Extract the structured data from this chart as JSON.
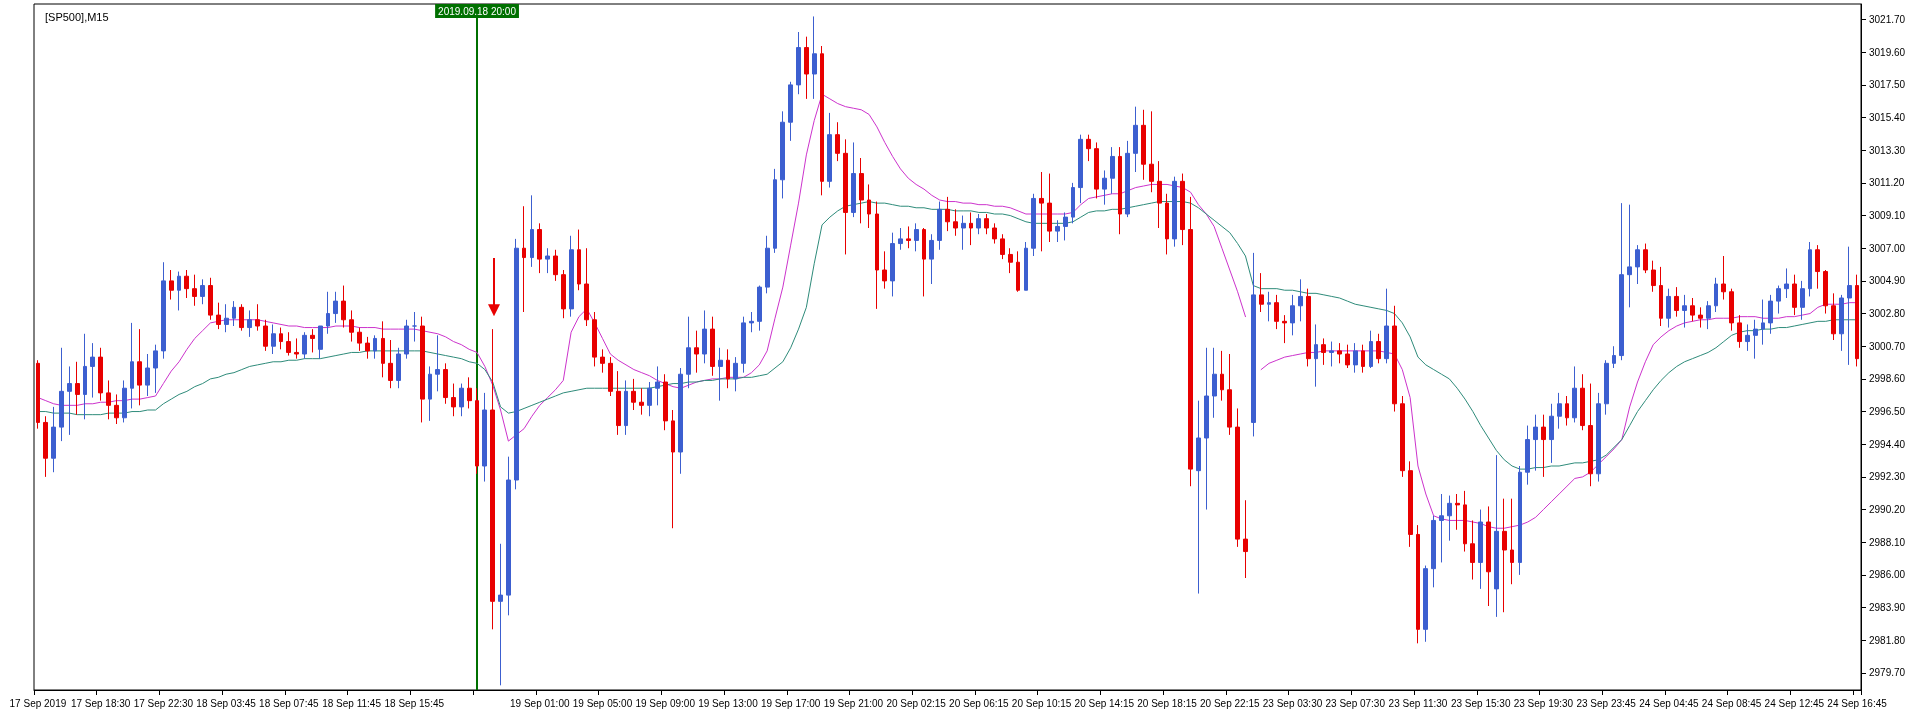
{
  "chart_data": {
    "type": "candlestick",
    "title": "[SP500],M15",
    "categories": [
      "17 Sep 2019",
      null,
      null,
      null,
      null,
      null,
      null,
      null,
      "17 Sep 18:30",
      null,
      null,
      null,
      null,
      null,
      null,
      null,
      "17 Sep 22:30",
      null,
      null,
      null,
      null,
      null,
      null,
      null,
      "18 Sep 03:45",
      null,
      null,
      null,
      null,
      null,
      null,
      null,
      "18 Sep 07:45",
      null,
      null,
      null,
      null,
      null,
      null,
      null,
      "18 Sep 11:45",
      null,
      null,
      null,
      null,
      null,
      null,
      null,
      "18 Sep 15:45",
      null,
      null,
      null,
      null,
      null,
      null,
      null,
      "2019.09.18 20:00",
      null,
      null,
      null,
      null,
      null,
      null,
      null,
      "19 Sep 01:00",
      null,
      null,
      null,
      null,
      null,
      null,
      null,
      "19 Sep 05:00",
      null,
      null,
      null,
      null,
      null,
      null,
      null,
      "19 Sep 09:00",
      null,
      null,
      null,
      null,
      null,
      null,
      null,
      "19 Sep 13:00",
      null,
      null,
      null,
      null,
      null,
      null,
      null,
      "19 Sep 17:00",
      null,
      null,
      null,
      null,
      null,
      null,
      null,
      "19 Sep 21:00",
      null,
      null,
      null,
      null,
      null,
      null,
      null,
      "20 Sep 02:15",
      null,
      null,
      null,
      null,
      null,
      null,
      null,
      "20 Sep 06:15",
      null,
      null,
      null,
      null,
      null,
      null,
      null,
      "20 Sep 10:15",
      null,
      null,
      null,
      null,
      null,
      null,
      null,
      "20 Sep 14:15",
      null,
      null,
      null,
      null,
      null,
      null,
      null,
      "20 Sep 18:15",
      null,
      null,
      null,
      null,
      null,
      null,
      null,
      "20 Sep 22:15",
      null,
      null,
      null,
      null,
      null,
      null,
      null,
      "23 Sep 03:30",
      null,
      null,
      null,
      null,
      null,
      null,
      null,
      "23 Sep 07:30",
      null,
      null,
      null,
      null,
      null,
      null,
      null,
      "23 Sep 11:30",
      null,
      null,
      null,
      null,
      null,
      null,
      null,
      "23 Sep 15:30",
      null,
      null,
      null,
      null,
      null,
      null,
      null,
      "23 Sep 19:30",
      null,
      null,
      null,
      null,
      null,
      null,
      null,
      "23 Sep 23:45",
      null,
      null,
      null,
      null,
      null,
      null,
      null,
      "24 Sep 04:45",
      null,
      null,
      null,
      null,
      null,
      null,
      null,
      "24 Sep 08:45",
      null,
      null,
      null,
      null,
      null,
      null,
      null,
      "24 Sep 12:45",
      null,
      null,
      null,
      null,
      null,
      null,
      null,
      "24 Sep 16:45"
    ],
    "ohlc": [
      [
        2999.6,
        2999.8,
        2995.4,
        2995.8
      ],
      [
        2995.8,
        2996.2,
        2992.3,
        2993.5
      ],
      [
        2993.5,
        2996.8,
        2992.6,
        2995.5
      ],
      [
        2995.5,
        3000.6,
        2994.6,
        2997.8
      ],
      [
        2997.8,
        2999.4,
        2995.0,
        2998.3
      ],
      [
        2998.3,
        2999.7,
        2996.3,
        2997.6
      ],
      [
        2997.6,
        3001.5,
        2996.0,
        2999.4
      ],
      [
        2999.4,
        3000.9,
        2997.4,
        3000.0
      ],
      [
        3000.0,
        3000.6,
        2997.2,
        2997.7
      ],
      [
        2997.7,
        2998.5,
        2996.0,
        2996.9
      ],
      [
        2996.9,
        2997.6,
        2995.7,
        2996.1
      ],
      [
        2996.1,
        2998.5,
        2995.8,
        2998.0
      ],
      [
        2998.0,
        3002.2,
        2996.7,
        2999.7
      ],
      [
        2999.7,
        3001.8,
        2996.9,
        2998.2
      ],
      [
        2998.2,
        3000.2,
        2997.5,
        2999.3
      ],
      [
        2999.3,
        3000.8,
        2997.7,
        3000.4
      ],
      [
        3000.4,
        3006.1,
        2999.9,
        3004.9
      ],
      [
        3004.9,
        3005.6,
        3003.7,
        3004.3
      ],
      [
        3004.3,
        3005.5,
        3003.0,
        3005.2
      ],
      [
        3005.2,
        3005.6,
        3003.8,
        3004.4
      ],
      [
        3004.4,
        3005.3,
        3003.3,
        3003.9
      ],
      [
        3003.9,
        3005.0,
        3003.4,
        3004.6
      ],
      [
        3004.6,
        3005.1,
        3002.4,
        3002.7
      ],
      [
        3002.7,
        3003.5,
        3001.8,
        3002.1
      ],
      [
        3002.1,
        3003.4,
        3001.6,
        3002.5
      ],
      [
        3002.5,
        3003.6,
        3002.0,
        3003.2
      ],
      [
        3003.2,
        3003.4,
        3001.7,
        3001.9
      ],
      [
        3001.9,
        3003.0,
        3001.3,
        3002.4
      ],
      [
        3002.4,
        3003.4,
        3001.7,
        3002.0
      ],
      [
        3002.0,
        3002.4,
        3000.4,
        3000.7
      ],
      [
        3000.7,
        3002.1,
        3000.2,
        3001.5
      ],
      [
        3001.5,
        3001.9,
        3000.5,
        3001.0
      ],
      [
        3001.0,
        3001.6,
        3000.1,
        3000.3
      ],
      [
        3000.3,
        3001.2,
        2999.9,
        3000.2
      ],
      [
        3000.2,
        3001.6,
        2999.9,
        3001.4
      ],
      [
        3001.4,
        3001.8,
        3000.3,
        3001.2
      ],
      [
        3000.5,
        3002.0,
        2999.9,
        3002.0
      ],
      [
        3002.0,
        3004.2,
        3001.5,
        3002.8
      ],
      [
        3002.8,
        3004.2,
        3002.2,
        3003.6
      ],
      [
        3003.6,
        3004.6,
        3001.9,
        3002.4
      ],
      [
        3002.4,
        3003.0,
        3001.0,
        3001.6
      ],
      [
        3001.6,
        3001.9,
        3000.4,
        3000.9
      ],
      [
        3000.9,
        3001.3,
        2999.9,
        3000.4
      ],
      [
        3000.4,
        3001.4,
        2999.9,
        3001.2
      ],
      [
        3001.2,
        3002.3,
        2998.7,
        2999.6
      ],
      [
        2999.6,
        3001.1,
        2998.0,
        2998.5
      ],
      [
        2998.5,
        3000.6,
        2998.0,
        3000.2
      ],
      [
        3000.2,
        3002.4,
        2999.9,
        3002.0
      ],
      [
        3002.0,
        3002.9,
        3001.0,
        3002.0
      ],
      [
        3002.0,
        3002.6,
        2995.8,
        2997.3
      ],
      [
        2997.3,
        2999.4,
        2995.9,
        2998.9
      ],
      [
        2998.9,
        3001.4,
        2997.8,
        2999.2
      ],
      [
        2999.2,
        2999.6,
        2997.0,
        2997.4
      ],
      [
        2997.4,
        2998.3,
        2996.2,
        2996.8
      ],
      [
        2996.8,
        2998.3,
        2996.2,
        2998.0
      ],
      [
        2998.0,
        2998.7,
        2996.7,
        2997.2
      ],
      [
        2997.2,
        2998.0,
        2992.5,
        2993.0
      ],
      [
        2993.0,
        2997.7,
        2992.0,
        2996.6
      ],
      [
        2996.6,
        3001.8,
        2982.5,
        2984.3
      ],
      [
        2984.3,
        2988.0,
        2978.9,
        2984.7
      ],
      [
        2984.7,
        2993.6,
        2983.4,
        2992.1
      ],
      [
        2992.1,
        3007.6,
        2991.5,
        3007.0
      ],
      [
        3007.0,
        3009.7,
        3002.9,
        3006.4
      ],
      [
        3006.4,
        3010.4,
        3005.8,
        3008.2
      ],
      [
        3008.2,
        3008.6,
        3005.4,
        3006.3
      ],
      [
        3006.3,
        3007.0,
        3005.4,
        3006.5
      ],
      [
        3006.5,
        3006.9,
        3004.9,
        3005.3
      ],
      [
        3005.3,
        3005.6,
        3002.5,
        3003.1
      ],
      [
        3003.1,
        3007.8,
        3002.6,
        3006.9
      ],
      [
        3006.9,
        3008.2,
        3004.3,
        3004.7
      ],
      [
        3004.7,
        3007.0,
        3002.0,
        3002.4
      ],
      [
        3002.4,
        3002.9,
        2999.4,
        3000.0
      ],
      [
        3000.0,
        3000.5,
        2999.0,
        2999.6
      ],
      [
        2999.6,
        3000.0,
        2997.5,
        2997.8
      ],
      [
        2997.8,
        2999.1,
        2995.0,
        2995.6
      ],
      [
        2995.6,
        2998.5,
        2995.0,
        2997.8
      ],
      [
        2997.8,
        2998.6,
        2996.6,
        2997.1
      ],
      [
        2997.1,
        2998.0,
        2996.3,
        2996.9
      ],
      [
        2996.9,
        2998.4,
        2996.2,
        2998.0
      ],
      [
        2998.0,
        2999.4,
        2996.9,
        2998.4
      ],
      [
        2998.4,
        2998.9,
        2995.3,
        2995.9
      ],
      [
        2995.9,
        2996.6,
        2989.0,
        2993.9
      ],
      [
        2993.9,
        2999.3,
        2992.5,
        2998.9
      ],
      [
        2998.9,
        3002.6,
        2998.0,
        3000.6
      ],
      [
        3000.6,
        3001.7,
        2999.0,
        3000.2
      ],
      [
        3000.2,
        3003.0,
        2999.6,
        3001.8
      ],
      [
        3001.8,
        3002.6,
        2998.8,
        2999.4
      ],
      [
        2999.4,
        3000.6,
        2997.2,
        2999.8
      ],
      [
        2999.8,
        3000.5,
        2998.0,
        2998.6
      ],
      [
        2998.6,
        3000.0,
        2997.8,
        2999.6
      ],
      [
        2999.6,
        3002.6,
        2999.0,
        3002.2
      ],
      [
        3002.2,
        3002.9,
        3001.6,
        3002.3
      ],
      [
        3002.3,
        3004.6,
        3001.7,
        3004.5
      ],
      [
        3004.5,
        3007.8,
        3004.1,
        3007.0
      ],
      [
        3007.0,
        3012.1,
        3006.7,
        3011.4
      ],
      [
        3011.4,
        3015.8,
        3010.2,
        3015.1
      ],
      [
        3015.1,
        3017.7,
        3013.9,
        3017.5
      ],
      [
        3017.5,
        3020.9,
        3016.9,
        3019.9
      ],
      [
        3019.9,
        3020.6,
        3016.6,
        3018.2
      ],
      [
        3018.2,
        3021.9,
        3016.6,
        3019.5
      ],
      [
        3019.5,
        3020.0,
        3010.4,
        3011.3
      ],
      [
        3011.3,
        3015.7,
        3010.9,
        3014.3
      ],
      [
        3014.3,
        3015.1,
        3012.6,
        3013.1
      ],
      [
        3013.1,
        3014.0,
        3006.6,
        3009.3
      ],
      [
        3009.3,
        3013.8,
        3009.0,
        3011.8
      ],
      [
        3011.8,
        3012.8,
        3008.6,
        3010.1
      ],
      [
        3010.1,
        3011.1,
        3008.3,
        3009.2
      ],
      [
        3009.2,
        3010.0,
        3003.1,
        3005.6
      ],
      [
        3005.6,
        3006.8,
        3004.4,
        3004.9
      ],
      [
        3004.9,
        3008.0,
        3003.9,
        3007.3
      ],
      [
        3007.3,
        3008.3,
        3006.9,
        3007.6
      ],
      [
        3007.6,
        3008.4,
        3007.0,
        3007.5
      ],
      [
        3007.5,
        3008.6,
        3006.8,
        3008.2
      ],
      [
        3008.2,
        3008.3,
        3003.9,
        3006.3
      ],
      [
        3006.3,
        3007.9,
        3004.7,
        3007.5
      ],
      [
        3007.5,
        3010.0,
        3006.9,
        3009.5
      ],
      [
        3009.5,
        3010.3,
        3008.1,
        3008.7
      ],
      [
        3008.7,
        3009.5,
        3007.8,
        3008.3
      ],
      [
        3008.3,
        3009.1,
        3006.9,
        3008.6
      ],
      [
        3008.6,
        3009.3,
        3007.2,
        3008.3
      ],
      [
        3008.3,
        3009.2,
        3007.9,
        3008.9
      ],
      [
        3008.9,
        3009.2,
        3007.9,
        3008.3
      ],
      [
        3008.3,
        3008.6,
        3007.3,
        3007.6
      ],
      [
        3007.6,
        3007.9,
        3006.3,
        3006.6
      ],
      [
        3006.6,
        3007.0,
        3005.4,
        3006.1
      ],
      [
        3006.1,
        3006.8,
        3004.2,
        3004.3
      ],
      [
        3004.3,
        3007.4,
        3004.3,
        3007.0
      ],
      [
        3007.0,
        3010.5,
        3006.5,
        3010.2
      ],
      [
        3010.2,
        3011.9,
        3006.8,
        3009.9
      ],
      [
        3009.9,
        3011.8,
        3007.4,
        3008.1
      ],
      [
        3008.1,
        3008.8,
        3007.4,
        3008.4
      ],
      [
        3008.4,
        3009.3,
        3007.5,
        3009.0
      ],
      [
        3009.0,
        3011.2,
        3008.6,
        3010.9
      ],
      [
        3010.9,
        3014.3,
        3009.9,
        3014.0
      ],
      [
        3014.0,
        3014.3,
        3012.6,
        3013.4
      ],
      [
        3013.4,
        3013.8,
        3010.2,
        3010.8
      ],
      [
        3010.8,
        3012.0,
        3009.8,
        3011.5
      ],
      [
        3011.5,
        3013.5,
        3010.5,
        3012.9
      ],
      [
        3012.9,
        3013.5,
        3007.9,
        3009.2
      ],
      [
        3009.2,
        3013.9,
        3009.0,
        3013.1
      ],
      [
        3013.1,
        3016.1,
        3011.9,
        3014.9
      ],
      [
        3014.9,
        3015.9,
        3011.4,
        3012.4
      ],
      [
        3012.4,
        3015.8,
        3010.6,
        3011.3
      ],
      [
        3011.3,
        3012.6,
        3008.3,
        3009.9
      ],
      [
        3009.9,
        3010.5,
        3006.6,
        3007.6
      ],
      [
        3007.6,
        3011.6,
        3007.1,
        3011.3
      ],
      [
        3011.3,
        3011.8,
        3007.2,
        3008.2
      ],
      [
        3008.2,
        3010.3,
        2991.7,
        2992.8
      ],
      [
        2992.7,
        2997.2,
        2984.8,
        2994.8
      ],
      [
        2994.8,
        3000.6,
        2990.2,
        2997.5
      ],
      [
        2997.5,
        3000.6,
        2996.1,
        2998.9
      ],
      [
        2998.9,
        3000.4,
        2997.2,
        2997.9
      ],
      [
        2997.9,
        3000.2,
        2995.0,
        2995.5
      ],
      [
        2995.5,
        2996.7,
        2987.8,
        2988.3
      ],
      [
        2988.3,
        2990.8,
        2985.8,
        2987.5
      ],
      [
        2995.8,
        3006.7,
        2994.9,
        3004.0
      ],
      [
        3004.0,
        3005.4,
        3002.9,
        3003.4
      ],
      [
        3003.4,
        3004.2,
        3002.3,
        3003.5
      ],
      [
        3003.5,
        3004.0,
        3001.8,
        3002.3
      ],
      [
        3002.3,
        3002.7,
        3000.9,
        3002.2
      ],
      [
        3002.2,
        3004.0,
        3001.4,
        3003.3
      ],
      [
        3003.3,
        3005.0,
        3002.3,
        3003.9
      ],
      [
        3003.9,
        3004.4,
        2999.4,
        2999.9
      ],
      [
        2999.9,
        3002.1,
        2998.1,
        3000.8
      ],
      [
        3000.8,
        3001.2,
        2999.5,
        3000.3
      ],
      [
        3000.3,
        3001.0,
        2999.4,
        3000.4
      ],
      [
        3000.4,
        3000.9,
        2999.6,
        3000.2
      ],
      [
        3000.2,
        3000.8,
        2999.3,
        2999.5
      ],
      [
        2999.5,
        3000.9,
        2999.0,
        3000.4
      ],
      [
        3000.4,
        3000.8,
        2999.0,
        2999.4
      ],
      [
        2999.4,
        3001.7,
        2999.3,
        3001.0
      ],
      [
        3001.0,
        3001.5,
        2999.6,
        2999.9
      ],
      [
        2999.9,
        3004.4,
        2999.6,
        3002.0
      ],
      [
        3002.0,
        3003.3,
        2996.5,
        2997.0
      ],
      [
        2997.0,
        2997.5,
        2992.3,
        2992.7
      ],
      [
        2992.7,
        2993.3,
        2987.8,
        2988.6
      ],
      [
        2988.6,
        2989.2,
        2981.6,
        2982.5
      ],
      [
        2982.5,
        2986.6,
        2981.7,
        2986.4
      ],
      [
        2986.4,
        2989.8,
        2985.2,
        2989.5
      ],
      [
        2989.5,
        2991.2,
        2986.8,
        2989.8
      ],
      [
        2989.8,
        2991.1,
        2988.2,
        2990.6
      ],
      [
        2990.6,
        2991.2,
        2988.9,
        2990.5
      ],
      [
        2990.5,
        2991.4,
        2987.5,
        2988.0
      ],
      [
        2988.0,
        2989.5,
        2985.7,
        2986.8
      ],
      [
        2986.8,
        2990.2,
        2985.1,
        2989.4
      ],
      [
        2989.4,
        2990.4,
        2984.0,
        2986.2
      ],
      [
        2985.1,
        2993.7,
        2983.3,
        2988.8
      ],
      [
        2988.8,
        2990.9,
        2983.6,
        2987.6
      ],
      [
        2987.6,
        2990.9,
        2985.4,
        2986.8
      ],
      [
        2986.8,
        2993.0,
        2986.0,
        2992.6
      ],
      [
        2992.6,
        2995.6,
        2991.8,
        2994.7
      ],
      [
        2994.7,
        2996.3,
        2992.7,
        2995.5
      ],
      [
        2995.5,
        2996.3,
        2992.3,
        2994.7
      ],
      [
        2994.7,
        2997.0,
        2993.2,
        2996.2
      ],
      [
        2996.2,
        2997.7,
        2995.4,
        2997.0
      ],
      [
        2997.0,
        2997.5,
        2995.6,
        2996.1
      ],
      [
        2996.1,
        2999.4,
        2995.8,
        2998.0
      ],
      [
        2998.0,
        2998.9,
        2995.3,
        2995.6
      ],
      [
        2995.6,
        2998.3,
        2991.7,
        2992.5
      ],
      [
        2992.5,
        2997.7,
        2992.0,
        2997.0
      ],
      [
        2997.0,
        2999.8,
        2996.3,
        2999.6
      ],
      [
        2999.6,
        3000.7,
        2999.3,
        3000.1
      ],
      [
        3000.1,
        3009.9,
        2999.8,
        3005.3
      ],
      [
        3005.3,
        3009.8,
        3003.2,
        3005.8
      ],
      [
        3005.8,
        3007.2,
        3004.7,
        3006.9
      ],
      [
        3006.9,
        3007.3,
        3005.4,
        3005.6
      ],
      [
        3005.6,
        3006.2,
        3004.2,
        3004.6
      ],
      [
        3004.6,
        3005.8,
        3002.0,
        3002.5
      ],
      [
        3002.5,
        3004.4,
        3001.9,
        3003.9
      ],
      [
        3003.9,
        3004.5,
        3002.6,
        3003.0
      ],
      [
        3003.0,
        3004.0,
        3001.9,
        3003.3
      ],
      [
        3003.3,
        3003.8,
        3002.3,
        3002.7
      ],
      [
        3002.7,
        3003.2,
        3001.9,
        3002.5
      ],
      [
        3002.5,
        3003.6,
        3001.8,
        3003.3
      ],
      [
        3003.3,
        3005.1,
        3002.9,
        3004.7
      ],
      [
        3004.7,
        3006.5,
        3003.7,
        3004.2
      ],
      [
        3004.2,
        3004.4,
        3001.7,
        3002.2
      ],
      [
        3002.2,
        3002.7,
        3000.6,
        3001.0
      ],
      [
        3001.0,
        3002.1,
        3000.4,
        3001.4
      ],
      [
        3001.4,
        3002.4,
        2999.9,
        3001.8
      ],
      [
        3001.8,
        3003.7,
        3000.8,
        3002.2
      ],
      [
        3002.2,
        3004.0,
        3001.5,
        3003.6
      ],
      [
        3003.6,
        3004.6,
        3002.8,
        3004.4
      ],
      [
        3004.4,
        3005.7,
        3003.8,
        3004.7
      ],
      [
        3004.7,
        3005.3,
        3002.7,
        3003.2
      ],
      [
        3003.2,
        3004.9,
        3002.4,
        3004.4
      ],
      [
        3004.4,
        3007.4,
        3003.9,
        3006.9
      ],
      [
        3006.9,
        3007.2,
        3004.4,
        3005.5
      ],
      [
        3005.5,
        3005.6,
        3002.8,
        3003.3
      ],
      [
        3003.3,
        3004.1,
        3001.1,
        3001.5
      ],
      [
        3001.5,
        3004.0,
        3000.4,
        3003.8
      ],
      [
        3003.8,
        3007.1,
        2999.5,
        3004.6
      ],
      [
        3004.6,
        3005.3,
        2999.4,
        2999.9
      ]
    ],
    "series": [
      {
        "type": "line",
        "color": "#cc33cc",
        "values": [
          2997.4,
          2997.2,
          2997.0,
          2996.9,
          2996.9,
          2996.9,
          2997.0,
          2997.0,
          2997.1,
          2997.1,
          2997.2,
          2997.2,
          2997.3,
          2997.3,
          2997.4,
          2997.5,
          2998.3,
          2999.1,
          2999.7,
          3000.5,
          3001.2,
          3001.7,
          3002.2,
          3002.3,
          3002.4,
          3002.4,
          3002.4,
          3002.4,
          3002.4,
          3002.3,
          3002.2,
          3002.1,
          3002.0,
          3002.0,
          3001.9,
          3001.9,
          3001.9,
          3001.9,
          3002.0,
          3002.0,
          3002.0,
          3001.9,
          3001.9,
          3001.9,
          3001.8,
          3001.8,
          3001.8,
          3001.8,
          3001.8,
          3001.7,
          3001.6,
          3001.5,
          3001.3,
          3001.0,
          3000.8,
          3000.5,
          3000.3,
          2999.4,
          2998.2,
          2996.6,
          2994.6,
          2995.0,
          2995.4,
          2996.2,
          2996.9,
          2997.4,
          2997.9,
          2998.5,
          3001.6,
          3002.6,
          3003.1,
          3002.2,
          3001.2,
          3000.2,
          2999.8,
          2999.5,
          2999.2,
          2999.0,
          2998.8,
          2998.5,
          2998.3,
          2998.1,
          2998.0,
          2998.2,
          2998.4,
          2998.5,
          2998.6,
          2998.6,
          2998.7,
          2998.7,
          2998.7,
          2999.0,
          2999.5,
          3000.4,
          3002.5,
          3004.5,
          3007.2,
          3009.9,
          3013.0,
          3015.2,
          3016.9,
          3016.6,
          3016.3,
          3016.1,
          3016.0,
          3015.9,
          3015.6,
          3014.8,
          3013.8,
          3012.9,
          3012.1,
          3011.5,
          3011.1,
          3010.8,
          3010.4,
          3010.1,
          3010.0,
          3010.0,
          3009.9,
          3009.9,
          3009.8,
          3009.8,
          3009.7,
          3009.7,
          3009.6,
          3009.4,
          3009.2,
          3009.2,
          3009.2,
          3009.2,
          3009.2,
          3009.2,
          3009.3,
          3009.8,
          3010.2,
          3010.3,
          3010.4,
          3010.5,
          3010.5,
          3010.7,
          3010.9,
          3011.0,
          3011.1,
          3011.1,
          3011.1,
          3011.0,
          3010.9,
          3010.6,
          3009.8,
          3009.2,
          3008.4,
          3007.0,
          3005.6,
          3004.2,
          3002.6,
          null,
          2999.2,
          2999.6,
          2999.8,
          3000.0,
          3000.1,
          3000.2,
          3000.3,
          3000.3,
          3000.4,
          3000.4,
          3000.4,
          3000.4,
          3000.4,
          3000.4,
          3000.4,
          3000.4,
          3000.3,
          3000.2,
          2999.2,
          2997.4,
          2993.0,
          2991.2,
          2989.8,
          2989.6,
          2989.5,
          2989.5,
          2989.5,
          2989.4,
          2989.3,
          2989.1,
          2989.0,
          2989.0,
          2989.1,
          2989.2,
          2989.4,
          2989.7,
          2990.2,
          2990.7,
          2991.2,
          2991.7,
          2992.2,
          2992.3,
          2992.6,
          2993.1,
          2993.6,
          2994.1,
          2994.7,
          2996.8,
          2998.4,
          2999.7,
          3000.8,
          3001.3,
          3001.7,
          3002.0,
          3002.2,
          3002.3,
          3002.4,
          3002.4,
          3002.5,
          3002.5,
          3002.5,
          3002.6,
          3002.6,
          3002.6,
          3002.5,
          3002.5,
          3002.5,
          3002.6,
          3002.6,
          3002.7,
          3002.8,
          3003.2,
          3003.4,
          3003.4,
          3003.4,
          3003.5,
          3003.5
        ]
      },
      {
        "type": "line",
        "color": "#2e8b7a",
        "values": [
          2996.5,
          2996.5,
          2996.4,
          2996.4,
          2996.4,
          2996.3,
          2996.3,
          2996.3,
          2996.3,
          2996.4,
          2996.4,
          2996.4,
          2996.5,
          2996.5,
          2996.6,
          2996.6,
          2997.0,
          2997.3,
          2997.6,
          2997.8,
          2998.1,
          2998.3,
          2998.6,
          2998.7,
          2998.9,
          2999.0,
          2999.2,
          2999.4,
          2999.5,
          2999.6,
          2999.7,
          2999.7,
          2999.8,
          2999.8,
          2999.9,
          2999.9,
          2999.9,
          3000.0,
          3000.1,
          3000.2,
          3000.3,
          3000.3,
          3000.4,
          3000.4,
          3000.4,
          3000.4,
          3000.4,
          3000.4,
          3000.4,
          3000.4,
          3000.3,
          3000.2,
          3000.1,
          3000.0,
          2999.9,
          2999.7,
          2999.6,
          2999.2,
          2998.4,
          2996.8,
          2996.4,
          2996.5,
          2996.7,
          2996.9,
          2997.1,
          2997.3,
          2997.5,
          2997.7,
          2997.8,
          2997.9,
          2998.0,
          2998.0,
          2998.0,
          2998.0,
          2998.0,
          2998.0,
          2998.0,
          2998.0,
          2998.0,
          2998.1,
          2998.2,
          2998.3,
          2998.3,
          2998.4,
          2998.4,
          2998.5,
          2998.5,
          2998.6,
          2998.6,
          2998.6,
          2998.7,
          2998.7,
          2998.8,
          2998.9,
          2999.3,
          2999.7,
          3000.6,
          3001.8,
          3003.2,
          3006.0,
          3008.5,
          3009.0,
          3009.4,
          3009.7,
          3009.8,
          3009.9,
          3010.0,
          3009.9,
          3009.9,
          3009.8,
          3009.7,
          3009.7,
          3009.6,
          3009.6,
          3009.5,
          3009.5,
          3009.5,
          3009.4,
          3009.4,
          3009.4,
          3009.3,
          3009.3,
          3009.2,
          3009.2,
          3009.1,
          3008.9,
          3008.7,
          3008.6,
          3008.6,
          3008.6,
          3008.6,
          3008.6,
          3008.7,
          3009.0,
          3009.3,
          3009.4,
          3009.4,
          3009.5,
          3009.5,
          3009.6,
          3009.7,
          3009.8,
          3009.9,
          3010.0,
          3010.0,
          3010.0,
          3010.0,
          3009.9,
          3009.6,
          3009.2,
          3008.8,
          3008.4,
          3008.0,
          3007.3,
          3006.5,
          3004.6,
          3004.4,
          3004.4,
          3004.4,
          3004.3,
          3004.3,
          3004.2,
          3004.1,
          3004.1,
          3004.0,
          3003.9,
          3003.8,
          3003.6,
          3003.4,
          3003.3,
          3003.2,
          3003.1,
          3003.0,
          3002.8,
          3002.2,
          3001.3,
          3000.0,
          2999.5,
          2999.2,
          2998.9,
          2998.6,
          2998.0,
          2997.3,
          2996.5,
          2995.6,
          2994.8,
          2994.0,
          2993.4,
          2993.0,
          2992.8,
          2992.8,
          2992.9,
          2992.9,
          2993.0,
          2993.0,
          2993.1,
          2993.2,
          2993.2,
          2993.3,
          2993.4,
          2993.7,
          2994.2,
          2994.7,
          2995.6,
          2996.5,
          2997.2,
          2997.9,
          2998.5,
          2999.0,
          2999.4,
          2999.7,
          2999.9,
          3000.1,
          3000.3,
          3000.6,
          3001.0,
          3001.4,
          3001.6,
          3001.7,
          3001.7,
          3001.8,
          3001.8,
          3001.9,
          3001.9,
          3002.0,
          3002.1,
          3002.2,
          3002.3,
          3002.3,
          3002.4,
          3002.4,
          3002.4,
          3002.4
        ]
      }
    ],
    "ref_lines": [
      {
        "axis": "x",
        "value": "2019.09.18 20:00",
        "color": "#007000"
      }
    ],
    "ylim": [
      2978.6,
      3022.7
    ],
    "yticks": [
      {
        "value": 2979.7,
        "label": "2979.70"
      },
      {
        "value": 2981.8,
        "label": "2981.80"
      },
      {
        "value": 2983.9,
        "label": "2983.90"
      },
      {
        "value": 2986.0,
        "label": "2986.00"
      },
      {
        "value": 2988.1,
        "label": "2988.10"
      },
      {
        "value": 2990.2,
        "label": "2990.20"
      },
      {
        "value": 2992.3,
        "label": "2992.30"
      },
      {
        "value": 2994.4,
        "label": "2994.40"
      },
      {
        "value": 2996.5,
        "label": "2996.50"
      },
      {
        "value": 2998.6,
        "label": "2998.60"
      },
      {
        "value": 3000.7,
        "label": "3000.70"
      },
      {
        "value": 3002.8,
        "label": "3002.80"
      },
      {
        "value": 3004.9,
        "label": "3004.90"
      },
      {
        "value": 3007.0,
        "label": "3007.00"
      },
      {
        "value": 3009.1,
        "label": "3009.10"
      },
      {
        "value": 3011.2,
        "label": "3011.20"
      },
      {
        "value": 3013.3,
        "label": "3013.30"
      },
      {
        "value": 3015.4,
        "label": "3015.40"
      },
      {
        "value": 3017.5,
        "label": "3017.50"
      },
      {
        "value": 3019.6,
        "label": "3019.60"
      },
      {
        "value": 3021.7,
        "label": "3021.70"
      }
    ],
    "grid": false,
    "marker": "none",
    "line_style": "solid"
  }
}
